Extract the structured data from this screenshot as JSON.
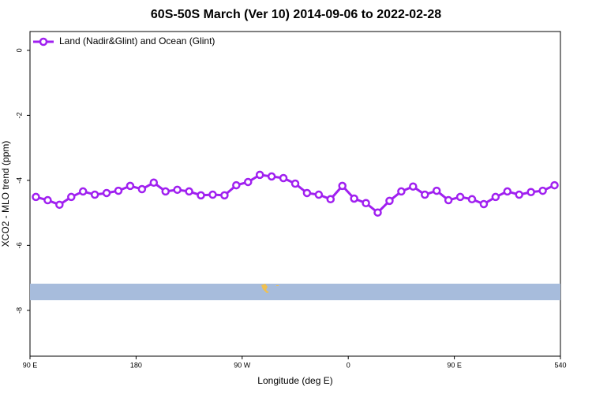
{
  "chart_data": {
    "type": "line",
    "title": "60S-50S March (Ver 10)   2014-09-06 to 2022-02-28",
    "x_label": "Longitude (deg E)",
    "y_label": "XCO2 - MLO trend (ppm)",
    "x": [
      95,
      105,
      115,
      125,
      135,
      145,
      155,
      165,
      175,
      185,
      195,
      205,
      215,
      225,
      235,
      245,
      255,
      265,
      275,
      285,
      295,
      305,
      315,
      325,
      335,
      345,
      355,
      365,
      375,
      385,
      395,
      405,
      415,
      425,
      435,
      445,
      455,
      465,
      475,
      485,
      495,
      505,
      515,
      525,
      535
    ],
    "series": [
      {
        "name": "Land (Nadir&Glint) and Ocean (Glint)",
        "color": "#a020f0",
        "values": [
          -4.51,
          -4.61,
          -4.75,
          -4.51,
          -4.34,
          -4.44,
          -4.39,
          -4.32,
          -4.17,
          -4.27,
          -4.07,
          -4.34,
          -4.29,
          -4.34,
          -4.46,
          -4.44,
          -4.46,
          -4.15,
          -4.05,
          -3.83,
          -3.88,
          -3.93,
          -4.1,
          -4.39,
          -4.44,
          -4.58,
          -4.17,
          -4.56,
          -4.7,
          -4.99,
          -4.63,
          -4.34,
          -4.19,
          -4.44,
          -4.32,
          -4.61,
          -4.51,
          -4.58,
          -4.73,
          -4.51,
          -4.34,
          -4.44,
          -4.36,
          -4.32,
          -4.15
        ]
      }
    ],
    "xlim": [
      90,
      540
    ],
    "xticks": [
      {
        "value": 90,
        "label": "90 E"
      },
      180,
      {
        "value": 270,
        "label": "90 W"
      },
      {
        "value": 360,
        "label": "0"
      },
      {
        "value": 450,
        "label": "90 E"
      },
      540
    ],
    "ylim": [
      -9.41,
      0.58
    ],
    "yticks": [
      0,
      -2,
      -4,
      -6,
      -8
    ],
    "legend": "top-left"
  }
}
